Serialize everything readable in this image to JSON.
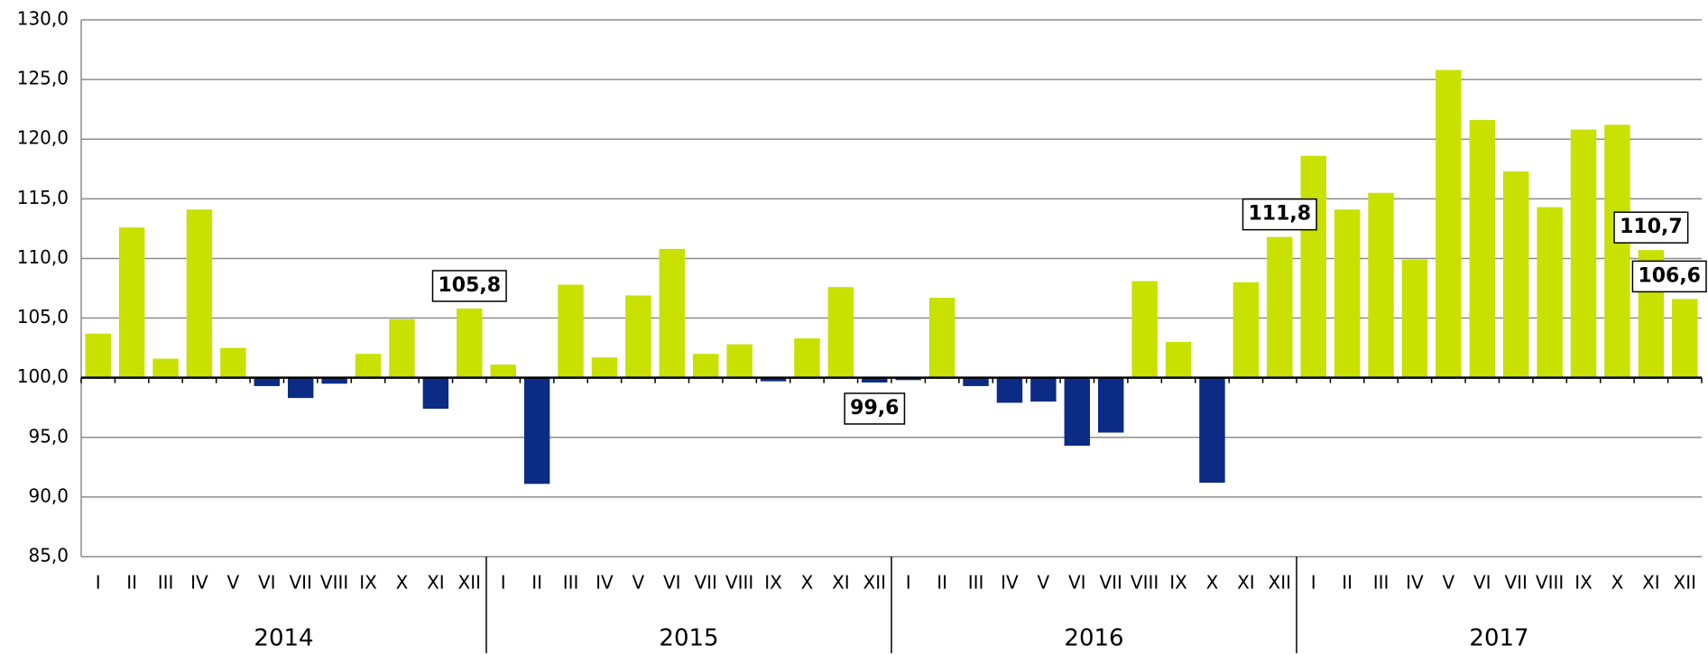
{
  "chart_data": {
    "type": "bar",
    "categories": [
      "I",
      "II",
      "III",
      "IV",
      "V",
      "VI",
      "VII",
      "VIII",
      "IX",
      "X",
      "XI",
      "XII",
      "I",
      "II",
      "III",
      "IV",
      "V",
      "VI",
      "VII",
      "VIII",
      "IX",
      "X",
      "XI",
      "XII",
      "I",
      "II",
      "III",
      "IV",
      "V",
      "VI",
      "VII",
      "VIII",
      "IX",
      "X",
      "XI",
      "XII",
      "I",
      "II",
      "III",
      "IV",
      "V",
      "VI",
      "VII",
      "VIII",
      "IX",
      "X",
      "XI",
      "XII"
    ],
    "groups": [
      "2014",
      "2015",
      "2016",
      "2017"
    ],
    "values": [
      103.7,
      112.6,
      101.6,
      114.1,
      102.5,
      99.3,
      98.3,
      99.5,
      102.0,
      104.9,
      97.4,
      105.8,
      101.1,
      91.1,
      107.8,
      101.7,
      106.9,
      110.8,
      102.0,
      102.8,
      99.7,
      103.3,
      107.6,
      99.6,
      99.8,
      106.7,
      99.3,
      97.9,
      98.0,
      94.3,
      95.4,
      108.1,
      103.0,
      91.2,
      108.0,
      111.8,
      118.6,
      114.1,
      115.5,
      109.9,
      125.8,
      121.6,
      117.3,
      114.3,
      120.8,
      121.2,
      110.7,
      106.6
    ],
    "value_labels": [
      null,
      null,
      null,
      null,
      null,
      null,
      null,
      null,
      null,
      null,
      null,
      "105,8",
      null,
      null,
      null,
      null,
      null,
      null,
      null,
      null,
      null,
      null,
      null,
      "99,6",
      null,
      null,
      null,
      null,
      null,
      null,
      null,
      null,
      null,
      null,
      null,
      "111,8",
      null,
      null,
      null,
      null,
      null,
      null,
      null,
      null,
      null,
      null,
      "110,7",
      "106,6"
    ],
    "baseline": 100,
    "colors": {
      "above": "#c8e100",
      "below": "#0b2b84"
    },
    "ylim": [
      85,
      130
    ],
    "yticks": [
      {
        "value": 85,
        "label": "85,0"
      },
      {
        "value": 90,
        "label": "90,0"
      },
      {
        "value": 95,
        "label": "95,0"
      },
      {
        "value": 100,
        "label": "100,0"
      },
      {
        "value": 105,
        "label": "105,0"
      },
      {
        "value": 110,
        "label": "110,0"
      },
      {
        "value": 115,
        "label": "115,0"
      },
      {
        "value": 120,
        "label": "120,0"
      },
      {
        "value": 125,
        "label": "125,0"
      },
      {
        "value": 130,
        "label": "130,0"
      }
    ],
    "grid": true
  }
}
